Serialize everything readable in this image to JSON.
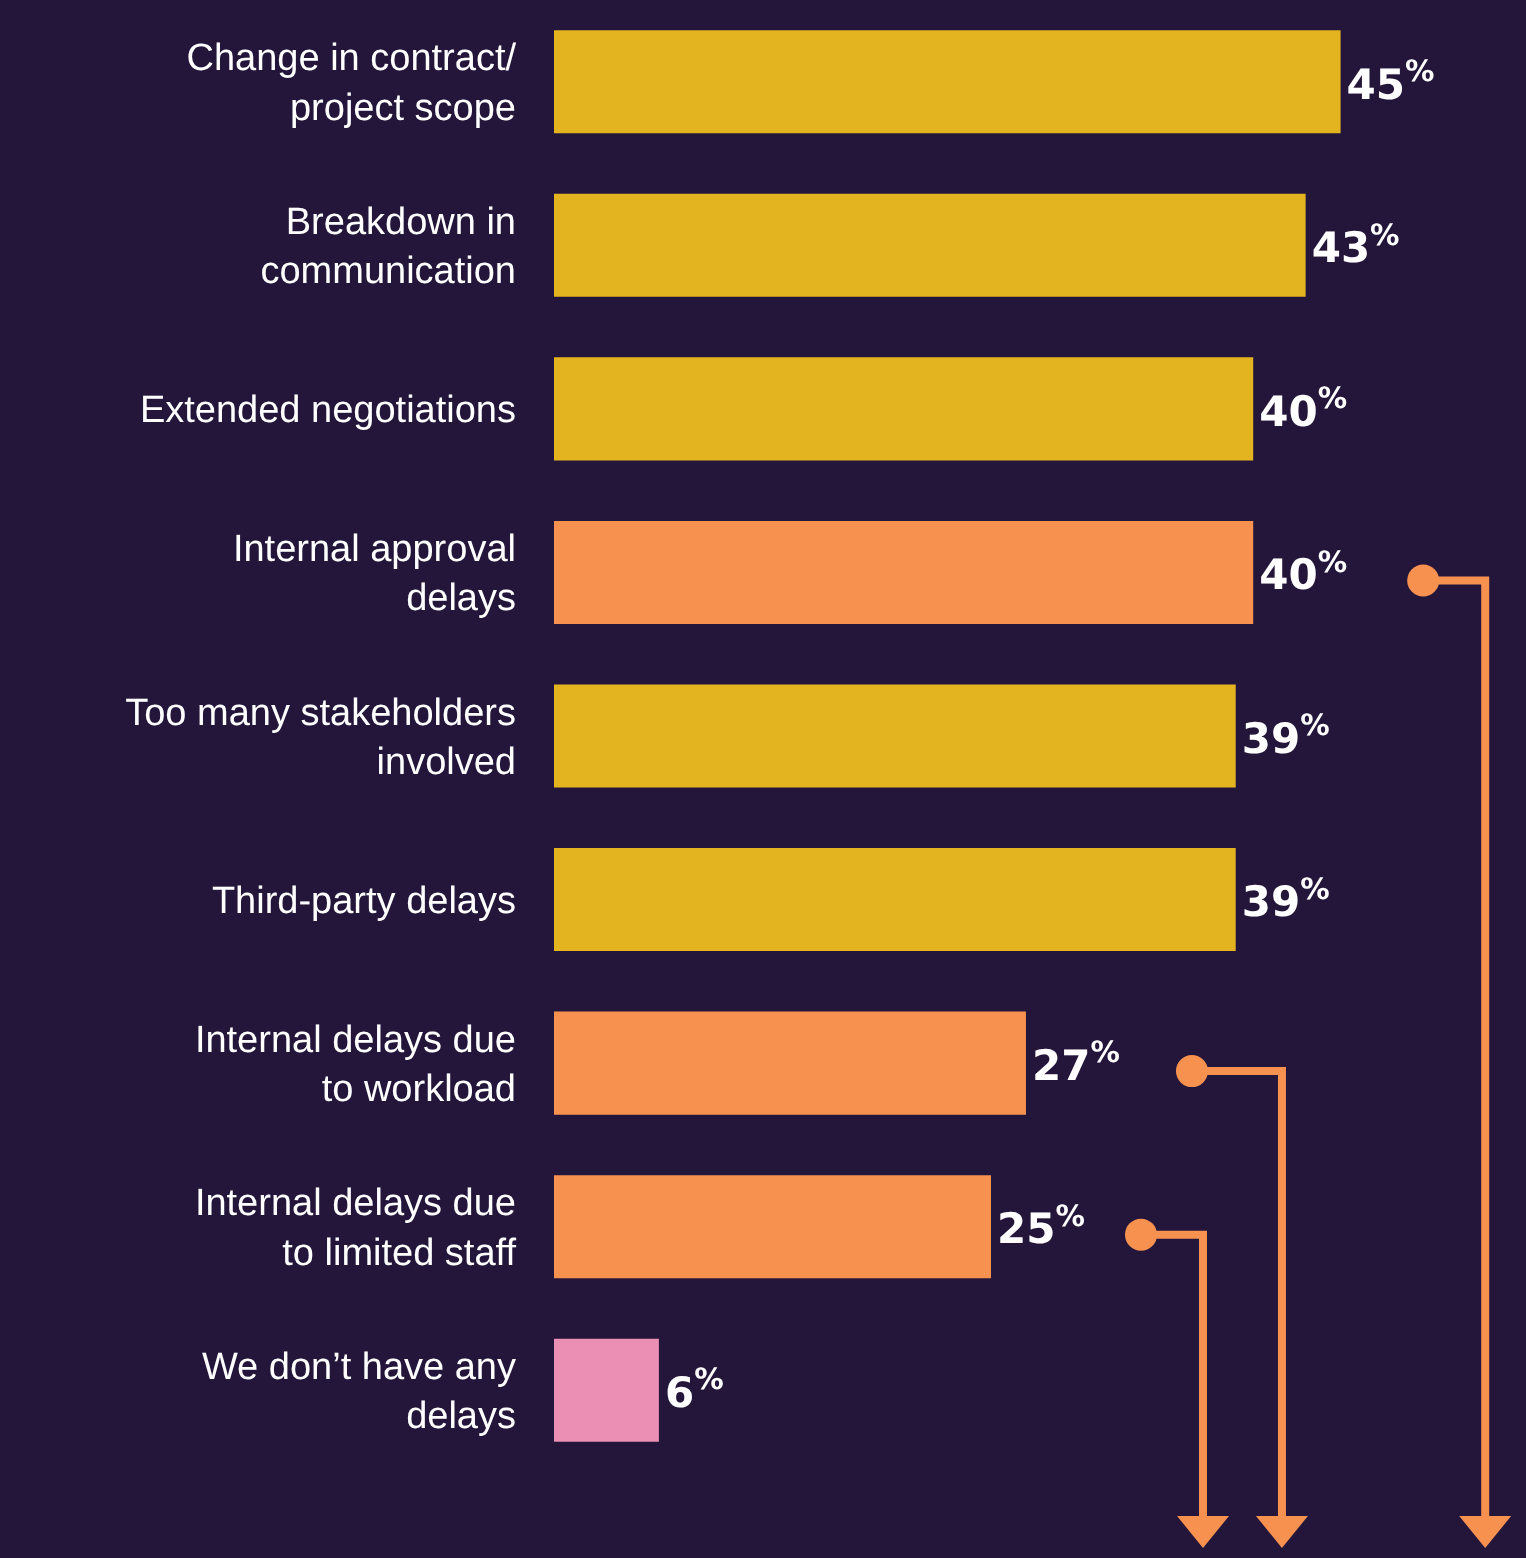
{
  "chart_data": {
    "type": "bar",
    "orientation": "horizontal",
    "categories": [
      "Change in contract/ project scope",
      "Breakdown in communication",
      "Extended negotiations",
      "Internal approval delays",
      "Too many stakeholders involved",
      "Third-party delays",
      "Internal delays due to workload",
      "Internal delays due to limited staff",
      "We don’t have any delays"
    ],
    "values": [
      45,
      43,
      40,
      40,
      39,
      39,
      27,
      25,
      6
    ],
    "colors": [
      "#e3b420",
      "#e3b420",
      "#e3b420",
      "#f79150",
      "#e3b420",
      "#e3b420",
      "#f79150",
      "#f79150",
      "#ec8fb5"
    ],
    "value_labels": [
      "45$^{%}$",
      "43$^{%}$",
      "40$^{%}$",
      "40$^{%}$",
      "39$^{%}$",
      "39$^{%}$",
      "27$^{%}$",
      "25$^{%}$",
      "6$^{%}$"
    ]
  }
}
